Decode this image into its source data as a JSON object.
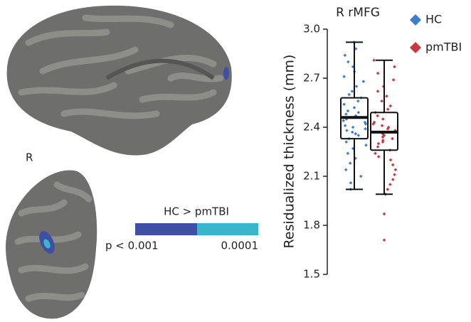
{
  "chart_data": {
    "type": "box",
    "title": "R rMFG",
    "y_label": "Residualized thickness (mm)",
    "ylim": [
      1.5,
      3.0
    ],
    "yticks": [
      1.5,
      1.8,
      2.1,
      2.4,
      2.7,
      {
        "value": 3.0,
        "label": "3.0"
      }
    ],
    "series": [
      {
        "name": "HC",
        "color": "#3d7dca",
        "whisker_low": 2.02,
        "q1": 2.33,
        "median": 2.46,
        "q3": 2.58,
        "whisker_high": 2.92,
        "outliers": [],
        "points": [
          2.92,
          2.88,
          2.84,
          2.8,
          2.77,
          2.74,
          2.71,
          2.68,
          2.65,
          2.62,
          2.6,
          2.58,
          2.56,
          2.54,
          2.52,
          2.5,
          2.49,
          2.48,
          2.47,
          2.46,
          2.45,
          2.44,
          2.43,
          2.42,
          2.41,
          2.4,
          2.39,
          2.38,
          2.37,
          2.36,
          2.35,
          2.33,
          2.31,
          2.29,
          2.27,
          2.24,
          2.21,
          2.18,
          2.14,
          2.1,
          2.06,
          2.02
        ]
      },
      {
        "name": "pmTBI",
        "color": "#c9373f",
        "whisker_low": 1.99,
        "q1": 2.26,
        "median": 2.37,
        "q3": 2.49,
        "whisker_high": 2.81,
        "outliers": [
          1.87,
          1.71
        ],
        "points": [
          2.81,
          2.77,
          2.73,
          2.69,
          2.65,
          2.62,
          2.59,
          2.56,
          2.53,
          2.51,
          2.49,
          2.47,
          2.45,
          2.43,
          2.42,
          2.41,
          2.4,
          2.39,
          2.38,
          2.37,
          2.36,
          2.35,
          2.34,
          2.33,
          2.32,
          2.31,
          2.3,
          2.28,
          2.26,
          2.24,
          2.22,
          2.2,
          2.17,
          2.14,
          2.11,
          2.08,
          2.05,
          2.02,
          1.99
        ]
      }
    ]
  },
  "brain": {
    "hemisphere_label": "R"
  },
  "colorbar": {
    "title": "HC > pmTBI",
    "colors": [
      "#3f4fa3",
      "#3bb6c9"
    ],
    "labels": [
      "p < 0.001",
      "0.0001"
    ]
  }
}
